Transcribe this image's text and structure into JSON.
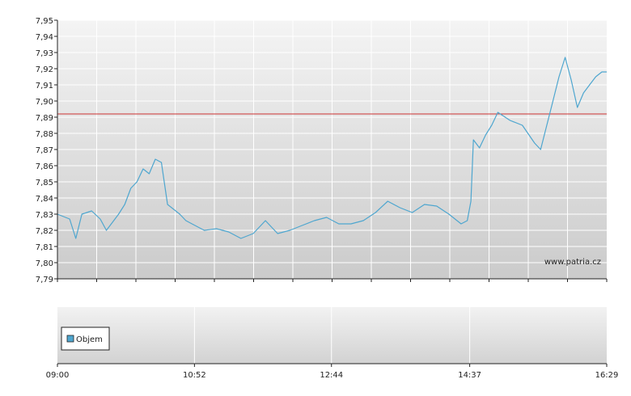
{
  "chart_data": {
    "type": "line",
    "watermark": "www.patria.cz",
    "y_ticks": [
      "7,79",
      "7,80",
      "7,81",
      "7,82",
      "7,83",
      "7,84",
      "7,85",
      "7,86",
      "7,87",
      "7,88",
      "7,89",
      "7,90",
      "7,91",
      "7,92",
      "7,93",
      "7,94",
      "7,95"
    ],
    "ylim": [
      7.79,
      7.95
    ],
    "x_tick_labels": [
      "09:00",
      "10:52",
      "12:44",
      "14:37",
      "16:29"
    ],
    "reference_line": {
      "value": 7.892,
      "color": "#cc3333"
    },
    "series": [
      {
        "color": "#4ea6cf",
        "x": [
          "09:00",
          "09:10",
          "09:15",
          "09:20",
          "09:28",
          "09:35",
          "09:40",
          "09:45",
          "09:50",
          "09:55",
          "10:00",
          "10:05",
          "10:10",
          "10:15",
          "10:20",
          "10:25",
          "10:30",
          "10:35",
          "10:40",
          "10:45",
          "10:50",
          "10:55",
          "11:00",
          "11:10",
          "11:20",
          "11:30",
          "11:40",
          "11:50",
          "12:00",
          "12:10",
          "12:20",
          "12:30",
          "12:40",
          "12:50",
          "13:00",
          "13:10",
          "13:20",
          "13:30",
          "13:40",
          "13:50",
          "14:00",
          "14:10",
          "14:20",
          "14:30",
          "14:35",
          "14:38",
          "14:40",
          "14:45",
          "14:50",
          "14:55",
          "15:00",
          "15:10",
          "15:20",
          "15:30",
          "15:35",
          "15:45",
          "15:50",
          "15:55",
          "16:00",
          "16:05",
          "16:10",
          "16:15",
          "16:20",
          "16:25",
          "16:29"
        ],
        "y": [
          7.83,
          7.827,
          7.815,
          7.83,
          7.832,
          7.827,
          7.82,
          7.825,
          7.83,
          7.836,
          7.846,
          7.85,
          7.858,
          7.855,
          7.864,
          7.862,
          7.836,
          7.833,
          7.83,
          7.826,
          7.824,
          7.822,
          7.82,
          7.821,
          7.819,
          7.815,
          7.818,
          7.826,
          7.818,
          7.82,
          7.823,
          7.826,
          7.828,
          7.824,
          7.824,
          7.826,
          7.831,
          7.838,
          7.834,
          7.831,
          7.836,
          7.835,
          7.83,
          7.824,
          7.826,
          7.838,
          7.876,
          7.871,
          7.879,
          7.885,
          7.893,
          7.888,
          7.885,
          7.874,
          7.87,
          7.9,
          7.915,
          7.927,
          7.913,
          7.896,
          7.905,
          7.91,
          7.915,
          7.918,
          7.918
        ]
      }
    ],
    "volume_panel": {
      "legend_label": "Objem"
    }
  },
  "colors": {
    "price_line": "#4ea6cf",
    "reference_line": "#cc3333",
    "plot_bg_top": "#f2f2f2",
    "plot_bg_bottom": "#cdcdcd",
    "grid": "#ffffff",
    "axis": "#222222",
    "legend_swatch": "#4ea6cf"
  }
}
